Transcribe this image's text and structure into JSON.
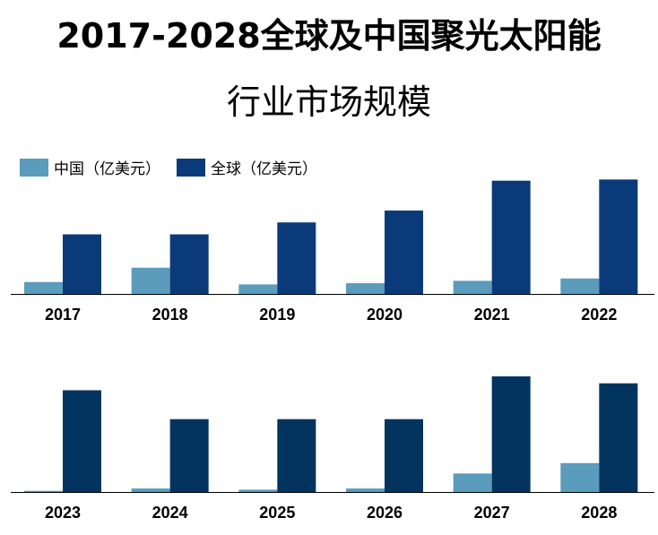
{
  "title_line1": "2017-2028全球及中国聚光太阳能",
  "title_line2": "行业市场规模",
  "legend": [
    {
      "label": "中国（亿美元）",
      "color": "#5b9bbb"
    },
    {
      "label": "全球（亿美元）",
      "color": "#0b3a7a"
    }
  ],
  "colors": {
    "china": "#5b9bbb",
    "global_top": "#0b3a7a",
    "global_bottom": "#03345f"
  },
  "chart_data": [
    {
      "type": "bar",
      "categories": [
        "2017",
        "2018",
        "2019",
        "2020",
        "2021",
        "2022"
      ],
      "series": [
        {
          "name": "中国（亿美元）",
          "values": [
            10,
            22,
            8,
            9,
            11,
            13
          ]
        },
        {
          "name": "全球（亿美元）",
          "values": [
            50,
            50,
            60,
            70,
            95,
            96
          ]
        }
      ],
      "ylim": [
        0,
        100
      ]
    },
    {
      "type": "bar",
      "categories": [
        "2023",
        "2024",
        "2025",
        "2026",
        "2027",
        "2028"
      ],
      "series": [
        {
          "name": "中国（亿美元）",
          "values": [
            1,
            3,
            2,
            3,
            16,
            25
          ]
        },
        {
          "name": "全球（亿美元）",
          "values": [
            88,
            63,
            63,
            63,
            100,
            94
          ]
        }
      ],
      "ylim": [
        0,
        100
      ]
    }
  ]
}
